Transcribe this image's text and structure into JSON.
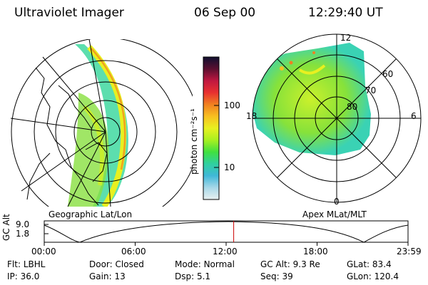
{
  "header": {
    "instrument": "Ultraviolet Imager",
    "date": "06 Sep 00",
    "time": "12:29:40 UT"
  },
  "colorbar": {
    "unit_label": "photon cm⁻²s⁻¹",
    "ticks": [
      "100",
      "10"
    ],
    "colors": [
      "#101030",
      "#5a1030",
      "#c01840",
      "#e83030",
      "#f08020",
      "#f8c020",
      "#e8f020",
      "#a8f020",
      "#40e040",
      "#30d0a0",
      "#40b8d8",
      "#a8d8e8",
      "#e8f0f0"
    ]
  },
  "left_map": {
    "caption": "Geographic Lat/Lon"
  },
  "right_map": {
    "caption": "Apex MLat/MLT",
    "mlt_labels": [
      "12",
      "18",
      "6",
      "0"
    ],
    "lat_labels": [
      "60",
      "70",
      "80"
    ]
  },
  "timeline": {
    "ylabel": "GC Alt",
    "yticks": [
      "9.0",
      "1.8"
    ],
    "xticks": [
      "00:00",
      "06:00",
      "12:00",
      "18:00",
      "23:59"
    ],
    "current_time_hours": 12.49,
    "marker_color": "#cc0000"
  },
  "info": {
    "row1": [
      {
        "label": "Flt:",
        "value": "LBHL"
      },
      {
        "label": "Door:",
        "value": "Closed"
      },
      {
        "label": "Mode:",
        "value": "Normal"
      },
      {
        "label": "GC Alt:",
        "value": "9.3 Re"
      },
      {
        "label": "GLat:",
        "value": "83.4"
      }
    ],
    "row2": [
      {
        "label": "IP:",
        "value": "36.0"
      },
      {
        "label": "Gain:",
        "value": "13"
      },
      {
        "label": "Dsp:",
        "value": "5.1"
      },
      {
        "label": "Seq:",
        "value": "39"
      },
      {
        "label": "GLon:",
        "value": "120.4"
      }
    ]
  }
}
